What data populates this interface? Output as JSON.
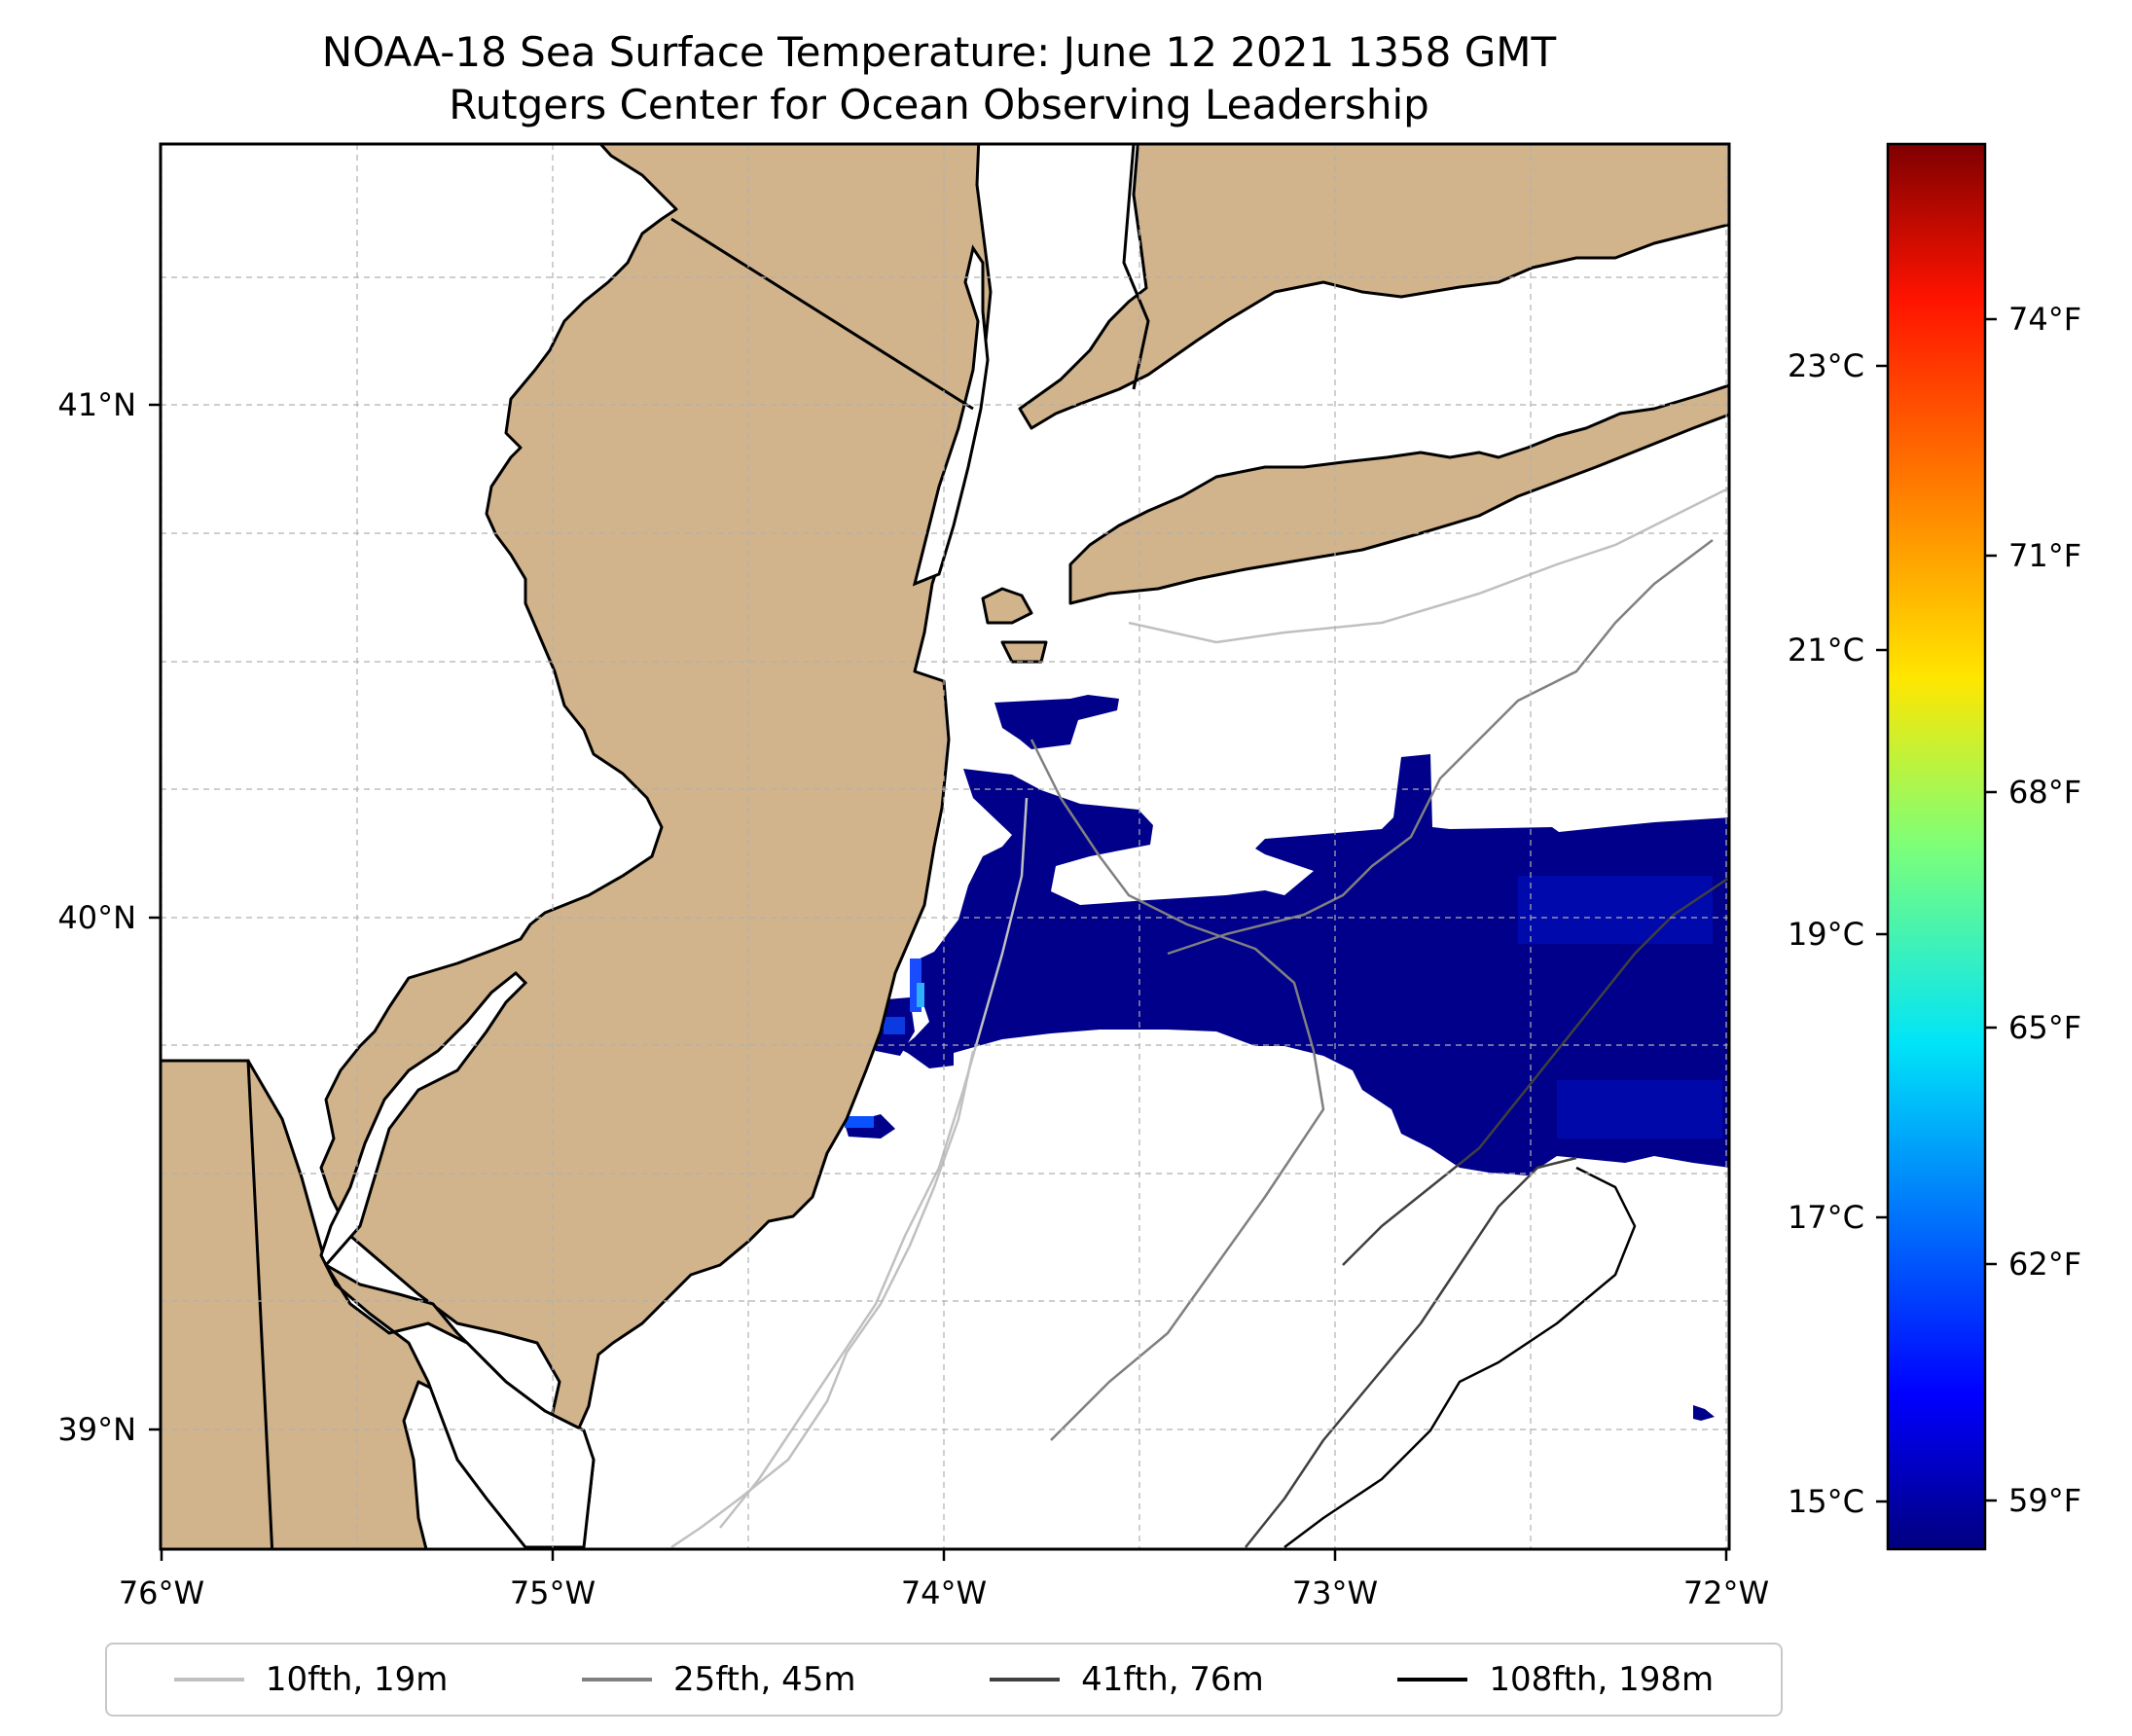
{
  "title": "NOAA-18 Sea Surface Temperature: June 12 2021 1358 GMT",
  "subtitle": "Rutgers Center for Ocean Observing Leadership",
  "map": {
    "lon_range": [
      -76,
      -72
    ],
    "lat_range": [
      38.75,
      41.55
    ],
    "lon_ticks": [
      "76°W",
      "75°W",
      "74°W",
      "73°W",
      "72°W"
    ],
    "lat_ticks": [
      "41°N",
      "40°N",
      "39°N"
    ],
    "land_color": "#d2b48c",
    "ocean_color": "#ffffff",
    "sst_cold_color": "#00008b",
    "grid": true
  },
  "colorbar": {
    "celsius_ticks": [
      "23°C",
      "21°C",
      "19°C",
      "17°C",
      "15°C"
    ],
    "fahrenheit_ticks": [
      "74°F",
      "71°F",
      "68°F",
      "65°F",
      "62°F",
      "59°F"
    ],
    "colormap": "jet"
  },
  "legend": [
    {
      "label": "10fth, 19m",
      "color": "#c0c0c0"
    },
    {
      "label": "25fth, 45m",
      "color": "#808080"
    },
    {
      "label": "41fth, 76m",
      "color": "#404040"
    },
    {
      "label": "108fth, 198m",
      "color": "#000000"
    }
  ]
}
